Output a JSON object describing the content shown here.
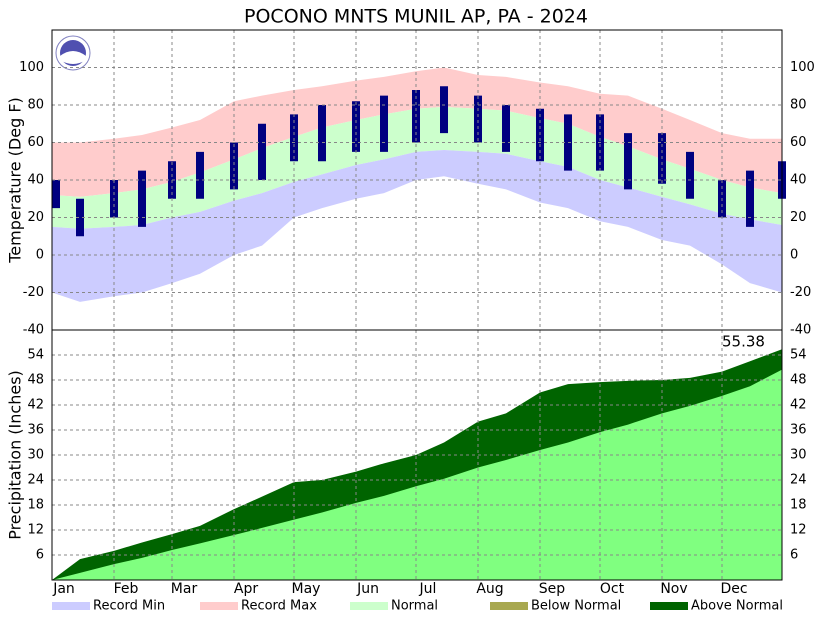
{
  "chart_data": {
    "type": "climate",
    "title": "POCONO MNTS MUNIL AP, PA - 2024",
    "x": [
      1,
      15,
      32,
      46,
      61,
      75,
      92,
      106,
      122,
      136,
      153,
      167,
      183,
      197,
      214,
      228,
      245,
      259,
      275,
      289,
      306,
      320,
      336,
      350,
      366
    ],
    "xlim": [
      1,
      366
    ],
    "xticks": [
      {
        "value": 1,
        "label": "Jan"
      },
      {
        "value": 32,
        "label": "Feb"
      },
      {
        "value": 61,
        "label": "Mar"
      },
      {
        "value": 92,
        "label": "Apr"
      },
      {
        "value": 122,
        "label": "May"
      },
      {
        "value": 153,
        "label": "Jun"
      },
      {
        "value": 183,
        "label": "Jul"
      },
      {
        "value": 214,
        "label": "Aug"
      },
      {
        "value": 245,
        "label": "Sep"
      },
      {
        "value": 275,
        "label": "Oct"
      },
      {
        "value": 306,
        "label": "Nov"
      },
      {
        "value": 336,
        "label": "Dec"
      }
    ],
    "grid": true,
    "temperature": {
      "ylabel": "Temperature (Deg F)",
      "ylim": [
        -40,
        120
      ],
      "yticks": [
        -40,
        -20,
        0,
        20,
        40,
        60,
        80,
        100
      ],
      "series": [
        {
          "name": "Record Min",
          "color": "#ccccff",
          "values": [
            -20,
            -25,
            -22,
            -20,
            -15,
            -10,
            0,
            5,
            20,
            25,
            30,
            33,
            40,
            42,
            38,
            35,
            28,
            25,
            18,
            15,
            8,
            5,
            -5,
            -15,
            -20
          ]
        },
        {
          "name": "Record Max",
          "color": "#ffcccc",
          "values": [
            60,
            60,
            62,
            64,
            68,
            72,
            82,
            85,
            88,
            90,
            93,
            95,
            98,
            100,
            96,
            95,
            92,
            90,
            86,
            85,
            78,
            72,
            65,
            62,
            62
          ]
        },
        {
          "name": "Normal",
          "color": "#ccffcc",
          "high": [
            32,
            31,
            33,
            35,
            39,
            44,
            51,
            57,
            63,
            68,
            72,
            75,
            78,
            79,
            78,
            77,
            73,
            70,
            63,
            58,
            51,
            46,
            40,
            36,
            33
          ],
          "low": [
            15,
            14,
            15,
            16,
            20,
            23,
            29,
            33,
            39,
            43,
            48,
            51,
            55,
            56,
            55,
            54,
            50,
            47,
            40,
            36,
            31,
            27,
            22,
            19,
            16
          ]
        }
      ],
      "observed": {
        "color": "#000080",
        "high": [
          40,
          30,
          40,
          45,
          50,
          55,
          60,
          70,
          75,
          80,
          82,
          85,
          88,
          90,
          85,
          80,
          78,
          75,
          75,
          65,
          65,
          55,
          40,
          45,
          50
        ],
        "low": [
          25,
          10,
          20,
          15,
          30,
          30,
          35,
          40,
          50,
          50,
          55,
          55,
          60,
          65,
          60,
          55,
          50,
          45,
          45,
          35,
          38,
          30,
          20,
          15,
          30
        ]
      }
    },
    "precipitation": {
      "ylabel": "Precipitation (Inches)",
      "ylim": [
        0,
        60
      ],
      "yticks": [
        6,
        12,
        18,
        24,
        30,
        36,
        42,
        48,
        54
      ],
      "normal": {
        "name": "Normal",
        "color": "#80ff80",
        "values": [
          0,
          1.7,
          3.8,
          5.3,
          7.2,
          8.8,
          10.8,
          12.5,
          14.5,
          16.2,
          18.5,
          20.2,
          22.5,
          24.3,
          27,
          28.8,
          31.2,
          33,
          35.5,
          37.3,
          40,
          41.8,
          44.2,
          46.5,
          50.5
        ]
      },
      "series": [
        {
          "name": "Below Normal",
          "color": "#a8a850"
        },
        {
          "name": "Above Normal",
          "color": "#006400",
          "values": [
            0,
            5,
            7,
            9,
            11,
            13,
            17,
            20,
            23.5,
            24,
            26,
            28,
            30,
            33,
            38,
            40,
            45,
            47,
            47.5,
            47.8,
            48,
            48.5,
            50,
            52.5,
            55.38
          ]
        }
      ],
      "annotation": "55.38"
    }
  }
}
